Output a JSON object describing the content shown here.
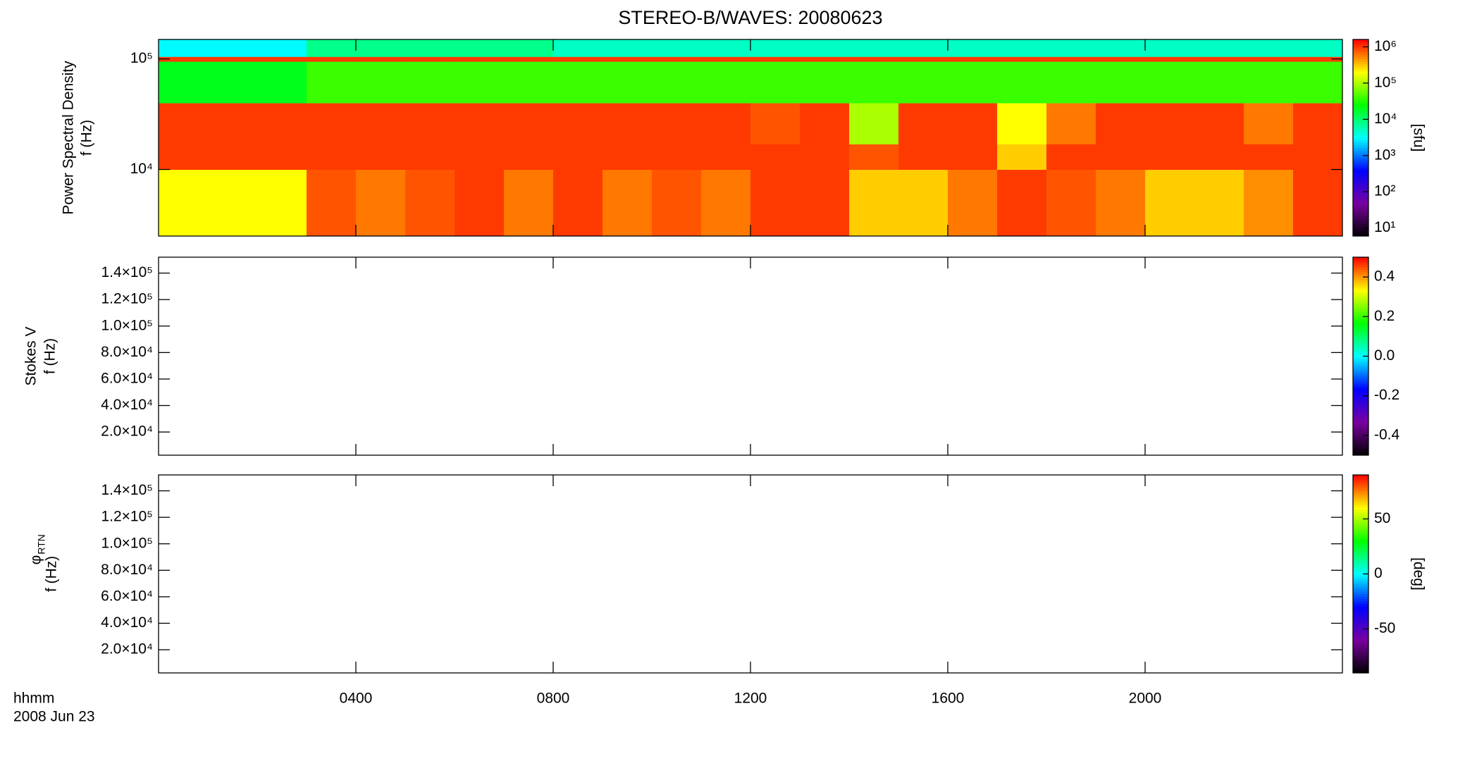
{
  "chart_data": [
    {
      "type": "heatmap",
      "title": "STEREO-B/WAVES: 20080623",
      "quantity": "Power Spectral Density",
      "ylabel": "f (Hz)",
      "xlim": [
        0,
        24
      ],
      "xticks": [
        4,
        8,
        12,
        16,
        20
      ],
      "ylim": [
        2500,
        150000
      ],
      "ylog": true,
      "yticks": [
        {
          "value": 10000,
          "label": "10⁴"
        },
        {
          "value": 100000,
          "label": "10⁵"
        }
      ],
      "x_bins": [
        0,
        1,
        2,
        3,
        4,
        5,
        6,
        7,
        8,
        9,
        10,
        11,
        12,
        13,
        14,
        15,
        16,
        17,
        18,
        19,
        20,
        21,
        22,
        23,
        24
      ],
      "y_bins": [
        2500,
        10000,
        17000,
        40000,
        95000,
        105000,
        150000
      ],
      "z": [
        [
          200000,
          200000,
          200000,
          800000,
          600000,
          800000,
          1000000,
          600000,
          1000000,
          600000,
          800000,
          600000,
          1000000,
          1000000,
          300000,
          300000,
          600000,
          1000000,
          800000,
          600000,
          300000,
          300000,
          500000,
          1000000
        ],
        [
          1000000,
          1000000,
          1000000,
          1000000,
          1000000,
          1000000,
          1000000,
          1000000,
          1000000,
          1000000,
          1000000,
          1000000,
          1000000,
          1000000,
          800000,
          1000000,
          1000000,
          300000,
          1000000,
          1000000,
          1000000,
          1000000,
          1000000,
          1000000
        ],
        [
          1000000,
          1000000,
          1000000,
          1000000,
          1000000,
          1000000,
          1000000,
          1000000,
          1000000,
          1000000,
          1000000,
          1000000,
          800000,
          1000000,
          100000,
          1000000,
          1000000,
          200000,
          600000,
          1000000,
          1000000,
          1000000,
          600000,
          1000000
        ],
        [
          20000,
          20000,
          20000,
          40000,
          40000,
          40000,
          40000,
          40000,
          40000,
          40000,
          40000,
          40000,
          40000,
          40000,
          40000,
          40000,
          40000,
          40000,
          40000,
          40000,
          40000,
          40000,
          40000,
          40000
        ],
        [
          1000000,
          1000000,
          1000000,
          1000000,
          1000000,
          1000000,
          1000000,
          1000000,
          1000000,
          1000000,
          1000000,
          1000000,
          1000000,
          1000000,
          1000000,
          1000000,
          1000000,
          1000000,
          1000000,
          1000000,
          1000000,
          1000000,
          1000000,
          1000000
        ],
        [
          3000,
          3000,
          3000,
          8000,
          8000,
          8000,
          8000,
          8000,
          5000,
          5000,
          5000,
          5000,
          5000,
          5000,
          5000,
          5000,
          5000,
          5000,
          5000,
          5000,
          5000,
          5000,
          5000,
          5000
        ]
      ],
      "zlim": [
        6,
        1600000
      ],
      "zlog": true,
      "zticks": [
        {
          "value": 10,
          "label": "10¹"
        },
        {
          "value": 100,
          "label": "10²"
        },
        {
          "value": 1000,
          "label": "10³"
        },
        {
          "value": 10000,
          "label": "10⁴"
        },
        {
          "value": 100000,
          "label": "10⁵"
        },
        {
          "value": 1000000,
          "label": "10⁶"
        }
      ],
      "zlabel": "[sfu]",
      "colormap": [
        "#000000",
        "#7a00a0",
        "#0000ff",
        "#00ffff",
        "#00ff00",
        "#ffff00",
        "#ff0000"
      ]
    },
    {
      "type": "heatmap",
      "quantity": "Stokes V",
      "ylabel": "f (Hz)",
      "xlim": [
        0,
        24
      ],
      "xticks": [
        4,
        8,
        12,
        16,
        20
      ],
      "ylim": [
        2500,
        152000
      ],
      "yticks": [
        {
          "value": 20000,
          "label": "2.0×10⁴"
        },
        {
          "value": 40000,
          "label": "4.0×10⁴"
        },
        {
          "value": 60000,
          "label": "6.0×10⁴"
        },
        {
          "value": 80000,
          "label": "8.0×10⁴"
        },
        {
          "value": 100000,
          "label": "1.0×10⁵"
        },
        {
          "value": 120000,
          "label": "1.2×10⁵"
        },
        {
          "value": 140000,
          "label": "1.4×10⁵"
        }
      ],
      "zlim": [
        -0.5,
        0.5
      ],
      "zticks": [
        -0.4,
        -0.2,
        {
          "value": 0,
          "label": "0.0"
        },
        0.2,
        0.4
      ],
      "colormap": [
        "#000000",
        "#7a00a0",
        "#0000ff",
        "#00ffff",
        "#00ff00",
        "#ffff00",
        "#ff0000"
      ]
    },
    {
      "type": "heatmap",
      "quantity": {
        "symbol": "φ",
        "subscript": "RTN"
      },
      "ylabel": "f (Hz)",
      "xlim": [
        0,
        24
      ],
      "xticks": [
        {
          "value": 4,
          "label": "0400"
        },
        {
          "value": 8,
          "label": "0800"
        },
        {
          "value": 12,
          "label": "1200"
        },
        {
          "value": 16,
          "label": "1600"
        },
        {
          "value": 20,
          "label": "2000"
        }
      ],
      "xlabel": [
        "hhmm",
        "2008 Jun 23"
      ],
      "ylim": [
        2500,
        152000
      ],
      "yticks": [
        {
          "value": 20000,
          "label": "2.0×10⁴"
        },
        {
          "value": 40000,
          "label": "4.0×10⁴"
        },
        {
          "value": 60000,
          "label": "6.0×10⁴"
        },
        {
          "value": 80000,
          "label": "8.0×10⁴"
        },
        {
          "value": 100000,
          "label": "1.0×10⁵"
        },
        {
          "value": 120000,
          "label": "1.2×10⁵"
        },
        {
          "value": 140000,
          "label": "1.4×10⁵"
        }
      ],
      "zlim": [
        -90,
        90
      ],
      "zticks": [
        -50,
        0,
        50
      ],
      "zlabel": "[deg]",
      "colormap": [
        "#000000",
        "#7a00a0",
        "#0000ff",
        "#00ffff",
        "#00ff00",
        "#ffff00",
        "#ff0000"
      ]
    }
  ]
}
